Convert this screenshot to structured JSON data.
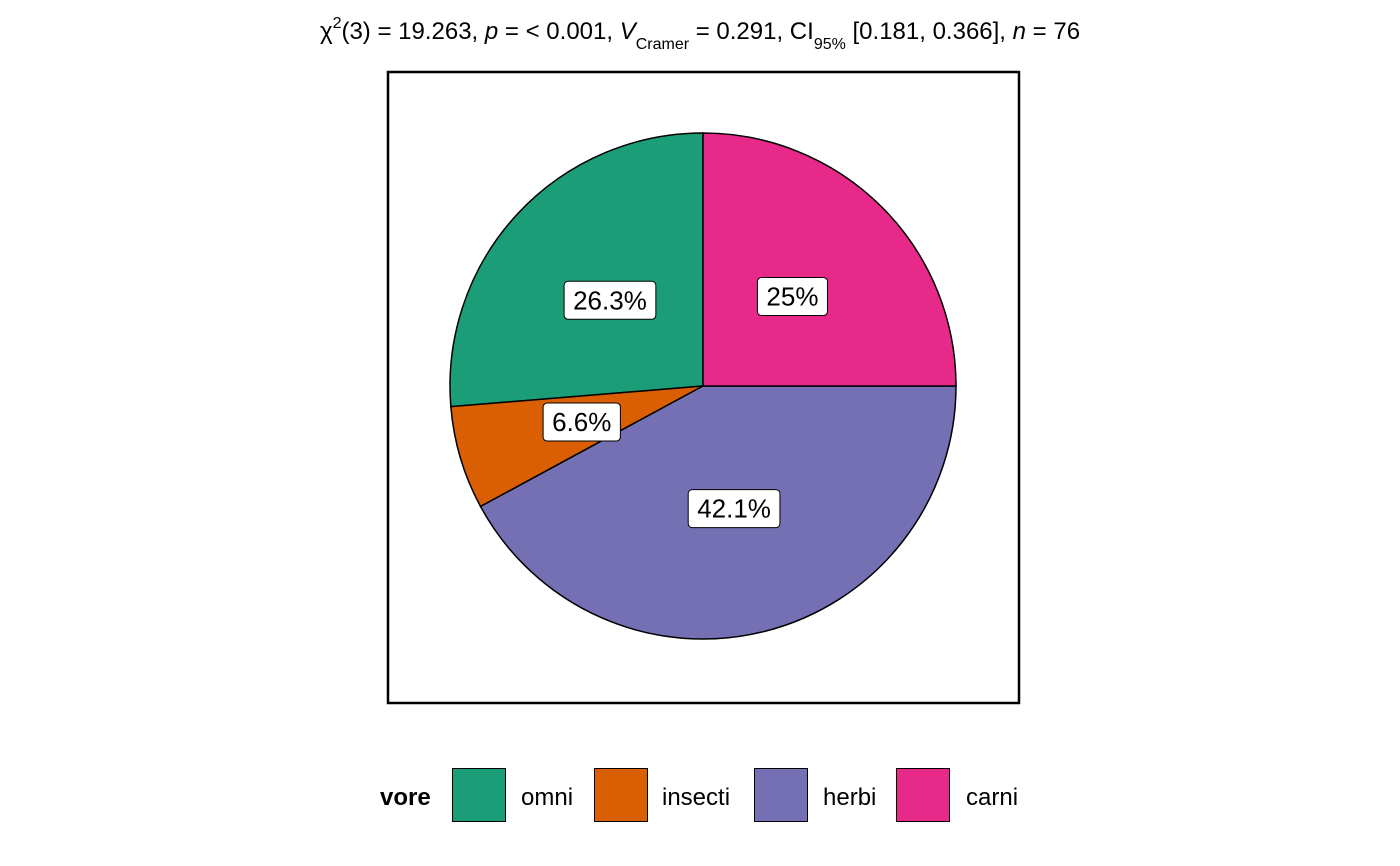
{
  "subtitle": {
    "chi_symbol": "χ",
    "chi_sup": "2",
    "df_part": "(3) = 19.263, ",
    "p_label": "p",
    "p_part": " = < 0.001, ",
    "v_label": "V",
    "v_sub": "Cramer",
    "v_part": " = 0.291, CI",
    "ci_sub": "95%",
    "ci_part": " [0.181, 0.366], ",
    "n_label": "n",
    "n_part": " = 76"
  },
  "legend": {
    "title": "vore",
    "items": [
      {
        "label": "omni",
        "color": "#1B9E77"
      },
      {
        "label": "insecti",
        "color": "#D95F02"
      },
      {
        "label": "herbi",
        "color": "#7570B3"
      },
      {
        "label": "carni",
        "color": "#E7298A"
      }
    ]
  },
  "chart_data": {
    "type": "pie",
    "title": "",
    "start": "12 o'clock, counter-clockwise order omni, insecti, herbi, carni",
    "slices": [
      {
        "category": "omni",
        "value": 26.3,
        "label": "26.3%",
        "color": "#1B9E77"
      },
      {
        "category": "insecti",
        "value": 6.6,
        "label": "6.6%",
        "color": "#D95F02"
      },
      {
        "category": "herbi",
        "value": 42.1,
        "label": "42.1%",
        "color": "#7570B3"
      },
      {
        "category": "carni",
        "value": 25.0,
        "label": "25%",
        "color": "#E7298A"
      }
    ]
  }
}
